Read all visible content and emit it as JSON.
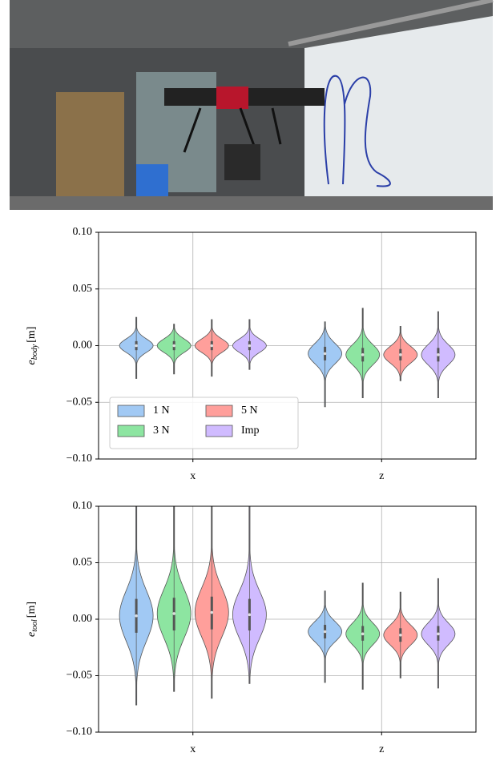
{
  "chart_data": [
    {
      "type": "violin",
      "ylabel": "e",
      "ylabel_subscript": "body",
      "ylabel_unit": "[m]",
      "categories": [
        "x",
        "z"
      ],
      "ylim": [
        -0.1,
        0.1
      ],
      "yticks": [
        {
          "value": -0.1,
          "label": "−0.10"
        },
        {
          "value": -0.05,
          "label": "−0.05"
        },
        {
          "value": 0,
          "label": "0.00"
        },
        {
          "value": 0.05,
          "label": "0.05"
        },
        {
          "value": 0.1,
          "label": "0.10"
        }
      ],
      "grid": true,
      "legend": "lower left",
      "series": [
        {
          "name": "1 N",
          "color": "#a1c9f4",
          "values": [
            0.0,
            -0.007
          ],
          "q1": [
            -0.004,
            -0.013
          ],
          "q3": [
            0.004,
            -0.001
          ],
          "mins": [
            -0.029,
            -0.054
          ],
          "maxs": [
            0.025,
            0.021
          ]
        },
        {
          "name": "3 N",
          "color": "#8de5a1",
          "values": [
            0.0,
            -0.008
          ],
          "q1": [
            -0.004,
            -0.014
          ],
          "q3": [
            0.004,
            -0.002
          ],
          "mins": [
            -0.025,
            -0.046
          ],
          "maxs": [
            0.019,
            0.033
          ]
        },
        {
          "name": "5 N",
          "color": "#ff9f9b",
          "values": [
            0.0,
            -0.008
          ],
          "q1": [
            -0.004,
            -0.013
          ],
          "q3": [
            0.004,
            -0.003
          ],
          "mins": [
            -0.027,
            -0.031
          ],
          "maxs": [
            0.023,
            0.017
          ]
        },
        {
          "name": "Imp",
          "color": "#d0bbff",
          "values": [
            0.0,
            -0.008
          ],
          "q1": [
            -0.004,
            -0.014
          ],
          "q3": [
            0.004,
            -0.002
          ],
          "mins": [
            -0.021,
            -0.046
          ],
          "maxs": [
            0.023,
            0.03
          ]
        }
      ]
    },
    {
      "type": "violin",
      "ylabel": "e",
      "ylabel_subscript": "tool",
      "ylabel_unit": "[m]",
      "categories": [
        "x",
        "z"
      ],
      "ylim": [
        -0.1,
        0.1
      ],
      "yticks": [
        {
          "value": -0.1,
          "label": "−0.10"
        },
        {
          "value": -0.05,
          "label": "−0.05"
        },
        {
          "value": 0,
          "label": "0.00"
        },
        {
          "value": 0.05,
          "label": "0.05"
        },
        {
          "value": 0.1,
          "label": "0.10"
        }
      ],
      "grid": true,
      "series": [
        {
          "name": "1 N",
          "color": "#a1c9f4",
          "values": [
            0.003,
            -0.011
          ],
          "q1": [
            -0.012,
            -0.017
          ],
          "q3": [
            0.018,
            -0.005
          ],
          "mins": [
            -0.076,
            -0.056
          ],
          "maxs": [
            0.1,
            0.025
          ]
        },
        {
          "name": "3 N",
          "color": "#8de5a1",
          "values": [
            0.005,
            -0.013
          ],
          "q1": [
            -0.01,
            -0.019
          ],
          "q3": [
            0.019,
            -0.006
          ],
          "mins": [
            -0.064,
            -0.062
          ],
          "maxs": [
            0.1,
            0.032
          ]
        },
        {
          "name": "5 N",
          "color": "#ff9f9b",
          "values": [
            0.006,
            -0.014
          ],
          "q1": [
            -0.009,
            -0.02
          ],
          "q3": [
            0.02,
            -0.008
          ],
          "mins": [
            -0.07,
            -0.052
          ],
          "maxs": [
            0.1,
            0.024
          ]
        },
        {
          "name": "Imp",
          "color": "#d0bbff",
          "values": [
            0.004,
            -0.013
          ],
          "q1": [
            -0.01,
            -0.019
          ],
          "q3": [
            0.018,
            -0.006
          ],
          "mins": [
            -0.057,
            -0.061
          ],
          "maxs": [
            0.1,
            0.036
          ]
        }
      ]
    }
  ]
}
